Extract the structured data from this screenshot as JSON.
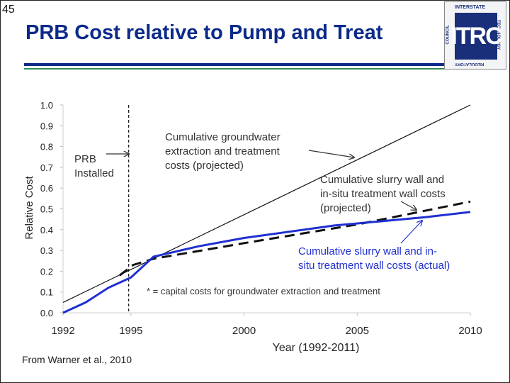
{
  "slide": {
    "number": "45",
    "title": "PRB Cost relative to Pump and Treat",
    "source": "From Warner et al., 2010"
  },
  "logo": {
    "top": "INTERSTATE",
    "right": "TECHNOLOGY",
    "bottom": "REGULATORY",
    "left": "COUNCIL",
    "mark": "ITRC"
  },
  "colors": {
    "title": "#0b2a8a",
    "actual_line": "#1f2fd1",
    "green_rule": "#2e8b57"
  },
  "chart_data": {
    "type": "line",
    "xlabel": "Year (1992-2011)",
    "ylabel": "Relative Cost",
    "xlim": [
      1992,
      2010
    ],
    "ylim": [
      0.0,
      1.0
    ],
    "x_ticks": [
      1992,
      1995,
      2000,
      2005,
      2010
    ],
    "y_ticks": [
      "0.0",
      "0.1",
      "0.2",
      "0.3",
      "0.4",
      "0.5",
      "0.6",
      "0.7",
      "0.8",
      "0.9",
      "1.0"
    ],
    "series": [
      {
        "name": "Cumulative groundwater extraction and treatment costs (projected)",
        "style": "solid-black-thin",
        "x": [
          1992,
          2010
        ],
        "y": [
          0.05,
          1.0
        ]
      },
      {
        "name": "Cumulative slurry wall and in-situ treatment wall costs (projected)",
        "style": "dashed-black",
        "x": [
          1994.5,
          1995.1,
          1996,
          2000,
          2005,
          2010
        ],
        "y": [
          0.18,
          0.23,
          0.26,
          0.335,
          0.425,
          0.535
        ]
      },
      {
        "name": "Cumulative slurry wall and in-situ treatment wall costs (actual)",
        "style": "solid-blue",
        "x": [
          1992,
          1993,
          1994,
          1995,
          1996,
          1998,
          2000,
          2002,
          2004,
          2006,
          2008,
          2010
        ],
        "y": [
          0.0,
          0.05,
          0.12,
          0.17,
          0.27,
          0.32,
          0.36,
          0.39,
          0.42,
          0.44,
          0.46,
          0.485
        ]
      }
    ],
    "annotations": {
      "prb_line1": "PRB",
      "prb_line2": "Installed",
      "gw_line1": "Cumulative groundwater",
      "gw_line2": "extraction and treatment",
      "gw_line3": "costs (projected)",
      "proj_line1": "Cumulative slurry wall and",
      "proj_line2": "in-situ treatment wall costs",
      "proj_line3": "(projected)",
      "act_line1": "Cumulative slurry wall and in-",
      "act_line2": "situ treatment wall costs (actual)",
      "footnote": "* = capital costs for groundwater  extraction  and treatment"
    },
    "prb_installed_year": 1994.9
  }
}
